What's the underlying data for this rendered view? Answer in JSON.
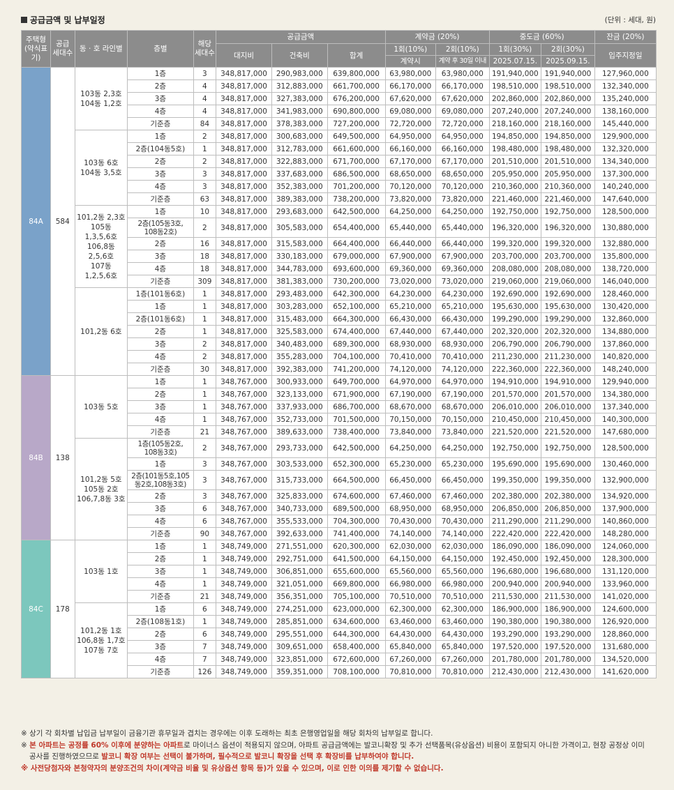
{
  "title": "공급금액 및 납부일정",
  "unit": "(단위 : 세대, 원)",
  "headers": {
    "house_type": "주택형 (약식표기)",
    "supply_units": "공급 세대수",
    "dong_ho": "동 · 호 라인별",
    "floor": "층별",
    "units_count": "해당 세대수",
    "supply_price": "공급금액",
    "land": "대지비",
    "building": "건축비",
    "total": "합계",
    "contract": "계약금 (20%)",
    "c1": "1회(10%)",
    "c2": "2회(10%)",
    "c1_date": "계약시",
    "c2_date": "계약 후 30일 이내",
    "middle": "중도금 (60%)",
    "m1": "1회(30%)",
    "m2": "2회(30%)",
    "m1_date": "2025.07.15.",
    "m2_date": "2025.09.15.",
    "balance": "잔금 (20%)",
    "balance_date": "입주지정일"
  },
  "types": [
    {
      "name": "84A",
      "units": "584",
      "color": "#7aa2c9",
      "groups": [
        {
          "label": "103동 2,3호\n104동 1,2호",
          "rows": [
            [
              "1층",
              "3",
              "348,817,000",
              "290,983,000",
              "639,800,000",
              "63,980,000",
              "63,980,000",
              "191,940,000",
              "191,940,000",
              "127,960,000"
            ],
            [
              "2층",
              "4",
              "348,817,000",
              "312,883,000",
              "661,700,000",
              "66,170,000",
              "66,170,000",
              "198,510,000",
              "198,510,000",
              "132,340,000"
            ],
            [
              "3층",
              "4",
              "348,817,000",
              "327,383,000",
              "676,200,000",
              "67,620,000",
              "67,620,000",
              "202,860,000",
              "202,860,000",
              "135,240,000"
            ],
            [
              "4층",
              "4",
              "348,817,000",
              "341,983,000",
              "690,800,000",
              "69,080,000",
              "69,080,000",
              "207,240,000",
              "207,240,000",
              "138,160,000"
            ],
            [
              "기준층",
              "84",
              "348,817,000",
              "378,383,000",
              "727,200,000",
              "72,720,000",
              "72,720,000",
              "218,160,000",
              "218,160,000",
              "145,440,000"
            ]
          ]
        },
        {
          "label": "103동 6호\n104동 3,5호",
          "rows": [
            [
              "1층",
              "2",
              "348,817,000",
              "300,683,000",
              "649,500,000",
              "64,950,000",
              "64,950,000",
              "194,850,000",
              "194,850,000",
              "129,900,000"
            ],
            [
              "2층(104동5호)",
              "1",
              "348,817,000",
              "312,783,000",
              "661,600,000",
              "66,160,000",
              "66,160,000",
              "198,480,000",
              "198,480,000",
              "132,320,000"
            ],
            [
              "2층",
              "2",
              "348,817,000",
              "322,883,000",
              "671,700,000",
              "67,170,000",
              "67,170,000",
              "201,510,000",
              "201,510,000",
              "134,340,000"
            ],
            [
              "3층",
              "3",
              "348,817,000",
              "337,683,000",
              "686,500,000",
              "68,650,000",
              "68,650,000",
              "205,950,000",
              "205,950,000",
              "137,300,000"
            ],
            [
              "4층",
              "3",
              "348,817,000",
              "352,383,000",
              "701,200,000",
              "70,120,000",
              "70,120,000",
              "210,360,000",
              "210,360,000",
              "140,240,000"
            ],
            [
              "기준층",
              "63",
              "348,817,000",
              "389,383,000",
              "738,200,000",
              "73,820,000",
              "73,820,000",
              "221,460,000",
              "221,460,000",
              "147,640,000"
            ]
          ]
        },
        {
          "label": "101,2동 2,3호\n105동\n1,3,5,6호\n106,8동\n2,5,6호\n107동\n1,2,5,6호",
          "rows": [
            [
              "1층",
              "10",
              "348,817,000",
              "293,683,000",
              "642,500,000",
              "64,250,000",
              "64,250,000",
              "192,750,000",
              "192,750,000",
              "128,500,000"
            ],
            [
              "2층(105동3호,\n108동2호)",
              "2",
              "348,817,000",
              "305,583,000",
              "654,400,000",
              "65,440,000",
              "65,440,000",
              "196,320,000",
              "196,320,000",
              "130,880,000"
            ],
            [
              "2층",
              "16",
              "348,817,000",
              "315,583,000",
              "664,400,000",
              "66,440,000",
              "66,440,000",
              "199,320,000",
              "199,320,000",
              "132,880,000"
            ],
            [
              "3층",
              "18",
              "348,817,000",
              "330,183,000",
              "679,000,000",
              "67,900,000",
              "67,900,000",
              "203,700,000",
              "203,700,000",
              "135,800,000"
            ],
            [
              "4층",
              "18",
              "348,817,000",
              "344,783,000",
              "693,600,000",
              "69,360,000",
              "69,360,000",
              "208,080,000",
              "208,080,000",
              "138,720,000"
            ],
            [
              "기준층",
              "309",
              "348,817,000",
              "381,383,000",
              "730,200,000",
              "73,020,000",
              "73,020,000",
              "219,060,000",
              "219,060,000",
              "146,040,000"
            ]
          ]
        },
        {
          "label": "101,2동 6호",
          "rows": [
            [
              "1층(101동6호)",
              "1",
              "348,817,000",
              "293,483,000",
              "642,300,000",
              "64,230,000",
              "64,230,000",
              "192,690,000",
              "192,690,000",
              "128,460,000"
            ],
            [
              "1층",
              "1",
              "348,817,000",
              "303,283,000",
              "652,100,000",
              "65,210,000",
              "65,210,000",
              "195,630,000",
              "195,630,000",
              "130,420,000"
            ],
            [
              "2층(101동6호)",
              "1",
              "348,817,000",
              "315,483,000",
              "664,300,000",
              "66,430,000",
              "66,430,000",
              "199,290,000",
              "199,290,000",
              "132,860,000"
            ],
            [
              "2층",
              "1",
              "348,817,000",
              "325,583,000",
              "674,400,000",
              "67,440,000",
              "67,440,000",
              "202,320,000",
              "202,320,000",
              "134,880,000"
            ],
            [
              "3층",
              "2",
              "348,817,000",
              "340,483,000",
              "689,300,000",
              "68,930,000",
              "68,930,000",
              "206,790,000",
              "206,790,000",
              "137,860,000"
            ],
            [
              "4층",
              "2",
              "348,817,000",
              "355,283,000",
              "704,100,000",
              "70,410,000",
              "70,410,000",
              "211,230,000",
              "211,230,000",
              "140,820,000"
            ],
            [
              "기준층",
              "30",
              "348,817,000",
              "392,383,000",
              "741,200,000",
              "74,120,000",
              "74,120,000",
              "222,360,000",
              "222,360,000",
              "148,240,000"
            ]
          ]
        }
      ]
    },
    {
      "name": "84B",
      "units": "138",
      "color": "#b8a8c8",
      "groups": [
        {
          "label": "103동 5호",
          "rows": [
            [
              "1층",
              "1",
              "348,767,000",
              "300,933,000",
              "649,700,000",
              "64,970,000",
              "64,970,000",
              "194,910,000",
              "194,910,000",
              "129,940,000"
            ],
            [
              "2층",
              "1",
              "348,767,000",
              "323,133,000",
              "671,900,000",
              "67,190,000",
              "67,190,000",
              "201,570,000",
              "201,570,000",
              "134,380,000"
            ],
            [
              "3층",
              "1",
              "348,767,000",
              "337,933,000",
              "686,700,000",
              "68,670,000",
              "68,670,000",
              "206,010,000",
              "206,010,000",
              "137,340,000"
            ],
            [
              "4층",
              "1",
              "348,767,000",
              "352,733,000",
              "701,500,000",
              "70,150,000",
              "70,150,000",
              "210,450,000",
              "210,450,000",
              "140,300,000"
            ],
            [
              "기준층",
              "21",
              "348,767,000",
              "389,633,000",
              "738,400,000",
              "73,840,000",
              "73,840,000",
              "221,520,000",
              "221,520,000",
              "147,680,000"
            ]
          ]
        },
        {
          "label": "101,2동 5호\n105동 2호\n106,7,8동 3호",
          "rows": [
            [
              "1층(105동2호,\n108동3호)",
              "2",
              "348,767,000",
              "293,733,000",
              "642,500,000",
              "64,250,000",
              "64,250,000",
              "192,750,000",
              "192,750,000",
              "128,500,000"
            ],
            [
              "1층",
              "3",
              "348,767,000",
              "303,533,000",
              "652,300,000",
              "65,230,000",
              "65,230,000",
              "195,690,000",
              "195,690,000",
              "130,460,000"
            ],
            [
              "2층(101동5호,105\n동2호,108동3호)",
              "3",
              "348,767,000",
              "315,733,000",
              "664,500,000",
              "66,450,000",
              "66,450,000",
              "199,350,000",
              "199,350,000",
              "132,900,000"
            ],
            [
              "2층",
              "3",
              "348,767,000",
              "325,833,000",
              "674,600,000",
              "67,460,000",
              "67,460,000",
              "202,380,000",
              "202,380,000",
              "134,920,000"
            ],
            [
              "3층",
              "6",
              "348,767,000",
              "340,733,000",
              "689,500,000",
              "68,950,000",
              "68,950,000",
              "206,850,000",
              "206,850,000",
              "137,900,000"
            ],
            [
              "4층",
              "6",
              "348,767,000",
              "355,533,000",
              "704,300,000",
              "70,430,000",
              "70,430,000",
              "211,290,000",
              "211,290,000",
              "140,860,000"
            ],
            [
              "기준층",
              "90",
              "348,767,000",
              "392,633,000",
              "741,400,000",
              "74,140,000",
              "74,140,000",
              "222,420,000",
              "222,420,000",
              "148,280,000"
            ]
          ]
        }
      ]
    },
    {
      "name": "84C",
      "units": "178",
      "color": "#7cc7bd",
      "groups": [
        {
          "label": "103동 1호",
          "rows": [
            [
              "1층",
              "1",
              "348,749,000",
              "271,551,000",
              "620,300,000",
              "62,030,000",
              "62,030,000",
              "186,090,000",
              "186,090,000",
              "124,060,000"
            ],
            [
              "2층",
              "1",
              "348,749,000",
              "292,751,000",
              "641,500,000",
              "64,150,000",
              "64,150,000",
              "192,450,000",
              "192,450,000",
              "128,300,000"
            ],
            [
              "3층",
              "1",
              "348,749,000",
              "306,851,000",
              "655,600,000",
              "65,560,000",
              "65,560,000",
              "196,680,000",
              "196,680,000",
              "131,120,000"
            ],
            [
              "4층",
              "1",
              "348,749,000",
              "321,051,000",
              "669,800,000",
              "66,980,000",
              "66,980,000",
              "200,940,000",
              "200,940,000",
              "133,960,000"
            ],
            [
              "기준층",
              "21",
              "348,749,000",
              "356,351,000",
              "705,100,000",
              "70,510,000",
              "70,510,000",
              "211,530,000",
              "211,530,000",
              "141,020,000"
            ]
          ]
        },
        {
          "label": "101,2동 1호\n106,8동 1,7호\n107동 7호",
          "rows": [
            [
              "1층",
              "6",
              "348,749,000",
              "274,251,000",
              "623,000,000",
              "62,300,000",
              "62,300,000",
              "186,900,000",
              "186,900,000",
              "124,600,000"
            ],
            [
              "2층(108동1호)",
              "1",
              "348,749,000",
              "285,851,000",
              "634,600,000",
              "63,460,000",
              "63,460,000",
              "190,380,000",
              "190,380,000",
              "126,920,000"
            ],
            [
              "2층",
              "6",
              "348,749,000",
              "295,551,000",
              "644,300,000",
              "64,430,000",
              "64,430,000",
              "193,290,000",
              "193,290,000",
              "128,860,000"
            ],
            [
              "3층",
              "7",
              "348,749,000",
              "309,651,000",
              "658,400,000",
              "65,840,000",
              "65,840,000",
              "197,520,000",
              "197,520,000",
              "131,680,000"
            ],
            [
              "4층",
              "7",
              "348,749,000",
              "323,851,000",
              "672,600,000",
              "67,260,000",
              "67,260,000",
              "201,780,000",
              "201,780,000",
              "134,520,000"
            ],
            [
              "기준층",
              "126",
              "348,749,000",
              "359,351,000",
              "708,100,000",
              "70,810,000",
              "70,810,000",
              "212,430,000",
              "212,430,000",
              "141,620,000"
            ]
          ]
        }
      ]
    }
  ],
  "notes": {
    "n1": "※ 상기 각 회차별 납입금 납부일이 금융기관 휴무일과 겹치는 경우에는 이후 도래하는 최초 은행영업일을 해당 회차의 납부일로 합니다.",
    "n2_prefix": "※ ",
    "n2_red1": "본 아파트는 공정률 60% 이후에 분양하는 아파트",
    "n2_mid": "로 마이너스 옵션이 적용되지 않으며, 아파트 공급금액에는 발코니확장 및 추가 선택품목(유상옵션) 비용이 포함되지 아니한 가격이고, 현장 공정상 이미",
    "n2_line2": "공사를 진행하였으므로 ",
    "n2_red2": "발코니 확장 여부는 선택이 불가하며, 필수적으로 발코니 확장을 선택 후 확장비를 납부하여야 합니다.",
    "n3": "※ 사전당첨자와 본청약자의 분양조건의 차이(계약금 비율 및 유상옵션 항목 등)가 있을 수 있으며, 이로 인한 이의를 제기할 수 없습니다."
  }
}
